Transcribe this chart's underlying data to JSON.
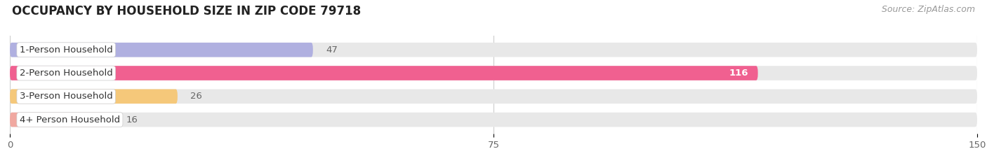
{
  "title": "OCCUPANCY BY HOUSEHOLD SIZE IN ZIP CODE 79718",
  "source": "Source: ZipAtlas.com",
  "categories": [
    "1-Person Household",
    "2-Person Household",
    "3-Person Household",
    "4+ Person Household"
  ],
  "values": [
    47,
    116,
    26,
    16
  ],
  "bar_colors": [
    "#b0b0e0",
    "#f06090",
    "#f5c87a",
    "#f0a8a0"
  ],
  "label_colors": [
    "#444444",
    "#ffffff",
    "#444444",
    "#444444"
  ],
  "value_outside_color": "#666666",
  "xlim": [
    0,
    150
  ],
  "xticks": [
    0,
    75,
    150
  ],
  "background_color": "#ffffff",
  "bar_background_color": "#e8e8e8",
  "title_fontsize": 12,
  "source_fontsize": 9,
  "label_fontsize": 9.5,
  "value_fontsize": 9.5,
  "bar_height": 0.62,
  "figsize": [
    14.06,
    2.33
  ],
  "dpi": 100
}
